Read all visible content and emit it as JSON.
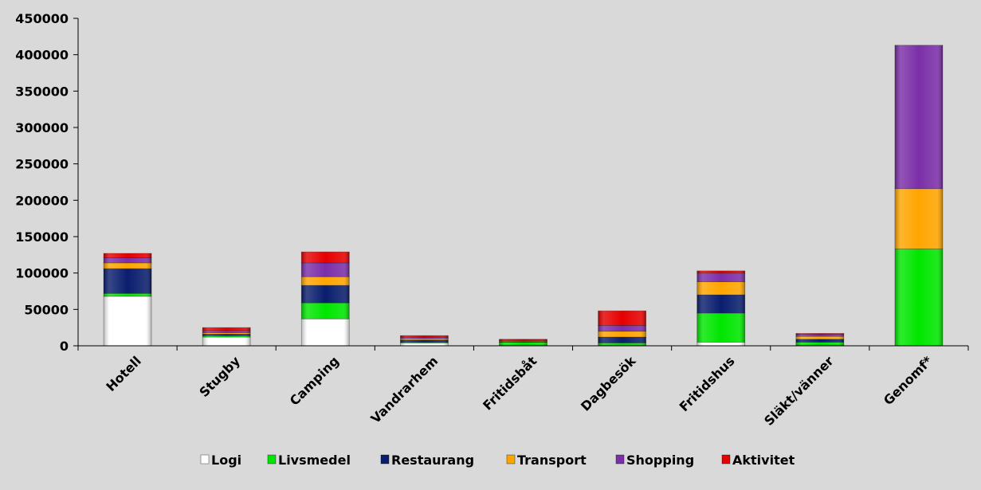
{
  "chart_data": {
    "type": "bar",
    "stacked": true,
    "title": "",
    "xlabel": "",
    "ylabel": "",
    "ylim": [
      0,
      450000
    ],
    "yticks": [
      "0",
      "50000",
      "100000",
      "150000",
      "200000",
      "250000",
      "300000",
      "350000",
      "400000",
      "450000"
    ],
    "categories": [
      "Hotell",
      "Stugby",
      "Camping",
      "Vandrarhem",
      "Fritidsbåt",
      "Dagbesök",
      "Fritidshus",
      "Släkt/vänner",
      "Genomf*"
    ],
    "series": [
      {
        "name": "Logi",
        "color": "#ffffff",
        "values": [
          68000,
          12000,
          37000,
          4000,
          1000,
          1000,
          5000,
          1000,
          0
        ]
      },
      {
        "name": "Livsmedel",
        "color": "#00e600",
        "values": [
          4000,
          2000,
          22000,
          1000,
          4000,
          3000,
          40000,
          4000,
          133000
        ]
      },
      {
        "name": "Restaurang",
        "color": "#0a1e6e",
        "values": [
          34000,
          2000,
          24000,
          3000,
          1000,
          8000,
          25000,
          4000,
          0
        ]
      },
      {
        "name": "Transport",
        "color": "#ffa500",
        "values": [
          8000,
          2000,
          12000,
          2000,
          1000,
          8000,
          18000,
          4000,
          83000
        ]
      },
      {
        "name": "Shopping",
        "color": "#7b2fa8",
        "values": [
          7000,
          3000,
          19000,
          2000,
          1000,
          8000,
          12000,
          3000,
          197000
        ]
      },
      {
        "name": "Aktivitet",
        "color": "#e60000",
        "values": [
          6000,
          4000,
          15000,
          2000,
          1000,
          20000,
          3000,
          1000,
          0
        ]
      }
    ],
    "grid": false,
    "legend_position": "bottom"
  }
}
